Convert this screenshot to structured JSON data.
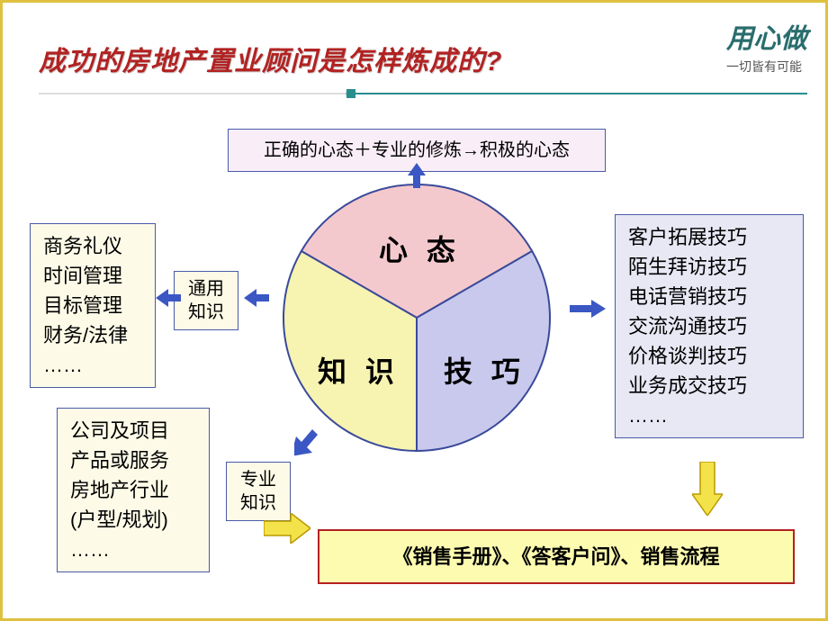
{
  "logo": {
    "main": "用心做",
    "sub": "一切皆有可能"
  },
  "title": "成功的房地产置业顾问是怎样炼成的?",
  "top_box": "正确的心态＋专业的修炼→积极的心态",
  "left_top_lines": [
    "商务礼仪",
    "时间管理",
    "目标管理",
    "财务/法律",
    "……"
  ],
  "left_bot_lines": [
    "公司及项目",
    "产品或服务",
    "房地产行业",
    "(户型/规划)",
    "……"
  ],
  "common_knowledge": "通用\n知识",
  "pro_knowledge": "专业\n知识",
  "right_lines": [
    "客户拓展技巧",
    "陌生拜访技巧",
    "电话营销技巧",
    "交流沟通技巧",
    "价格谈判技巧",
    "业务成交技巧",
    "……"
  ],
  "bottom_box": "《销售手册》、《答客户问》、销售流程",
  "pie": {
    "labels": {
      "top": "心 态",
      "bl": "知 识",
      "br": "技 巧"
    },
    "colors": {
      "top": "#f4c9cd",
      "bl": "#f7f3b0",
      "br": "#c8c9ec",
      "stroke": "#3a4a9a"
    }
  },
  "arrow_colors": {
    "blue": "#3a57c4",
    "yellow_fill": "#f4e24a",
    "yellow_stroke": "#b89a00"
  }
}
